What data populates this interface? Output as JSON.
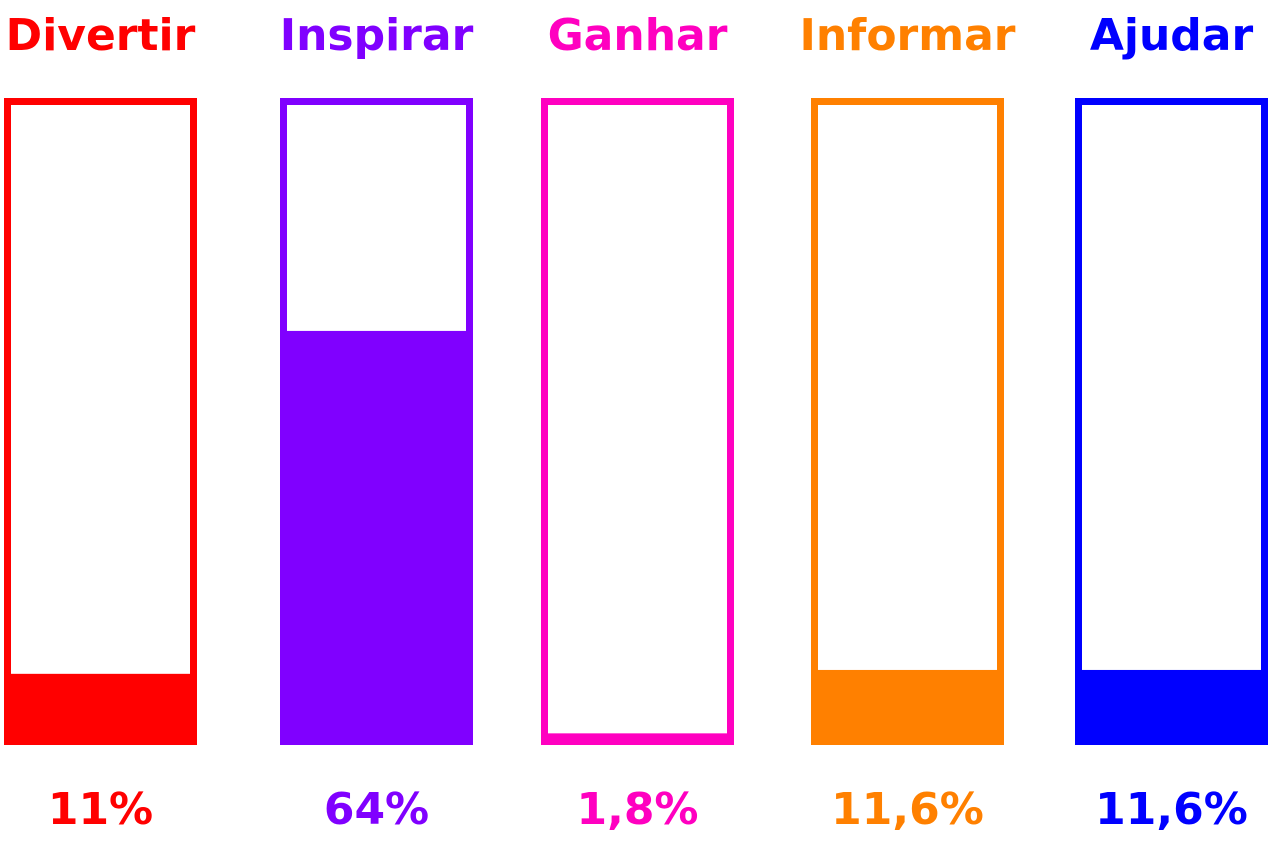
{
  "chart_data": {
    "type": "bar",
    "categories": [
      "Divertir",
      "Inspirar",
      "Ganhar",
      "Informar",
      "Ajudar"
    ],
    "values": [
      11,
      64,
      1.8,
      11.6,
      11.6
    ],
    "value_labels": [
      "11%",
      "64%",
      "1,8%",
      "11,6%",
      "11,6%"
    ],
    "colors": [
      "#ff0000",
      "#8000ff",
      "#ff00c0",
      "#ff8000",
      "#0000ff"
    ],
    "ylim": [
      0,
      100
    ]
  }
}
